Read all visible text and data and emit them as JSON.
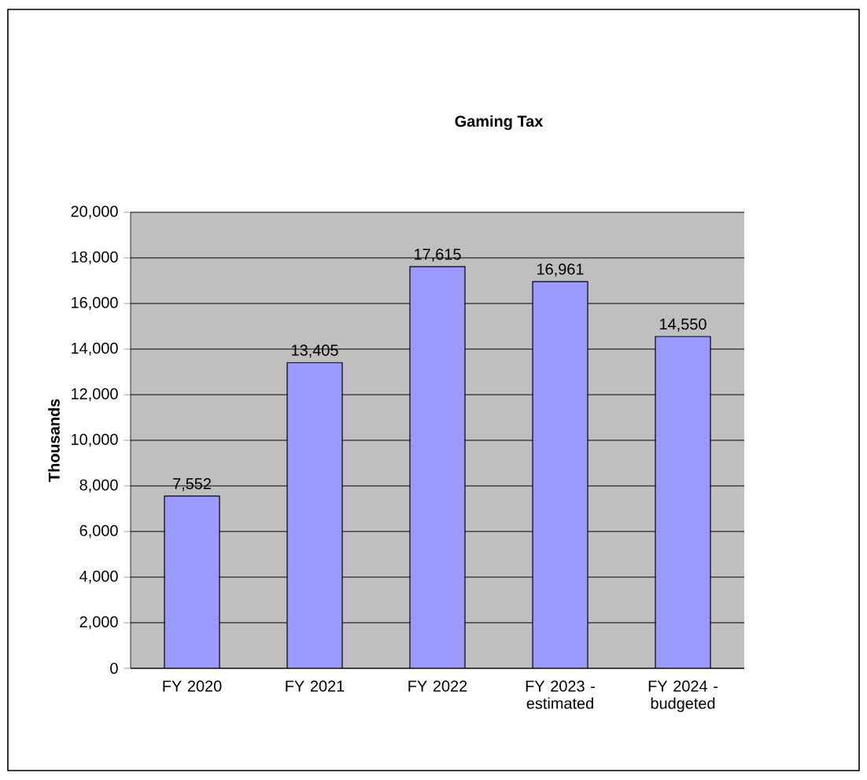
{
  "chart_data": {
    "type": "bar",
    "title": "Gaming Tax",
    "ylabel": "Thousands",
    "categories": [
      "FY 2020",
      "FY 2021",
      "FY 2022",
      "FY 2023 - estimated",
      "FY 2024 - budgeted"
    ],
    "values": [
      7552,
      13405,
      17615,
      16961,
      14550
    ],
    "value_labels": [
      "7,552",
      "13,405",
      "17,615",
      "16,961",
      "14,550"
    ],
    "color": "#9999ff",
    "ylim": [
      0,
      20000
    ],
    "yticks": [
      0,
      {
        "value": 2000,
        "label": "2,000"
      },
      {
        "value": 4000,
        "label": "4,000"
      },
      {
        "value": 6000,
        "label": "6,000"
      },
      {
        "value": 8000,
        "label": "8,000"
      },
      {
        "value": 10000,
        "label": "10,000"
      },
      {
        "value": 12000,
        "label": "12,000"
      },
      {
        "value": 14000,
        "label": "14,000"
      },
      {
        "value": 16000,
        "label": "16,000"
      },
      {
        "value": 18000,
        "label": "18,000"
      },
      {
        "value": 20000,
        "label": "20,000"
      }
    ],
    "grid": "y"
  }
}
